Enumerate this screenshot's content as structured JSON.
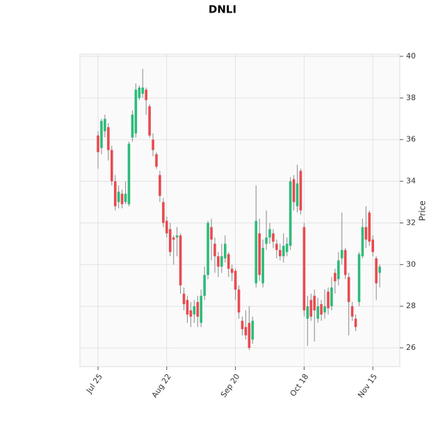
{
  "chart_data": {
    "type": "candlestick",
    "title": "DNLI",
    "ylabel": "Price",
    "categories": [
      "Jul 25",
      null,
      null,
      null,
      null,
      null,
      null,
      null,
      null,
      null,
      null,
      null,
      null,
      null,
      null,
      null,
      null,
      null,
      null,
      null,
      "Aug 22",
      null,
      null,
      null,
      null,
      null,
      null,
      null,
      null,
      null,
      null,
      null,
      null,
      null,
      null,
      null,
      null,
      null,
      null,
      null,
      "Sep 20",
      null,
      null,
      null,
      null,
      null,
      null,
      null,
      null,
      null,
      null,
      null,
      null,
      null,
      null,
      null,
      null,
      null,
      null,
      null,
      "Oct 18",
      null,
      null,
      null,
      null,
      null,
      null,
      null,
      null,
      null,
      null,
      null,
      null,
      null,
      null,
      null,
      null,
      null,
      null,
      null,
      "Nov 15",
      null,
      null
    ],
    "open": [
      36.2,
      35.6,
      36.4,
      36.6,
      35.5,
      34.0,
      33.0,
      33.4,
      33.0,
      32.9,
      36.1,
      36.3,
      38.0,
      38.2,
      38.4,
      37.6,
      36.0,
      35.3,
      34.3,
      33.0,
      32.1,
      31.7,
      31.3,
      31.3,
      31.4,
      28.6,
      28.3,
      27.8,
      27.6,
      28.2,
      27.2,
      28.5,
      29.5,
      31.8,
      31.0,
      30.4,
      29.9,
      30.3,
      30.5,
      29.8,
      29.7,
      28.8,
      27.3,
      27.0,
      27.2,
      26.4,
      29.1,
      31.5,
      29.1,
      31.0,
      31.3,
      31.5,
      31.0,
      30.7,
      30.4,
      30.6,
      30.9,
      34.1,
      32.8,
      34.5,
      31.8,
      27.4,
      28.3,
      28.5,
      27.4,
      28.1,
      27.7,
      28.7,
      28.0,
      29.6,
      29.3,
      30.3,
      30.7,
      29.4,
      28.0,
      27.4,
      28.2,
      30.4,
      31.8,
      32.5,
      31.2,
      30.3,
      29.6
    ],
    "high": [
      36.4,
      37.0,
      37.2,
      36.8,
      35.7,
      34.3,
      33.8,
      33.6,
      34.0,
      35.9,
      37.4,
      38.7,
      38.6,
      39.4,
      38.5,
      37.7,
      36.3,
      35.4,
      34.5,
      33.2,
      32.3,
      32.0,
      31.4,
      31.8,
      31.5,
      28.9,
      28.5,
      28.2,
      28.3,
      28.5,
      28.8,
      29.9,
      32.1,
      32.2,
      31.3,
      30.6,
      31.0,
      31.4,
      30.6,
      30.0,
      29.8,
      29.0,
      27.5,
      27.8,
      28.0,
      27.5,
      33.8,
      32.2,
      31.2,
      32.6,
      32.0,
      31.7,
      31.2,
      31.0,
      31.5,
      31.3,
      34.2,
      34.3,
      34.8,
      34.6,
      32.0,
      28.5,
      28.6,
      28.8,
      28.4,
      28.3,
      28.8,
      28.9,
      29.4,
      29.8,
      30.6,
      32.5,
      30.8,
      29.6,
      28.2,
      27.6,
      30.6,
      32.2,
      32.8,
      32.6,
      31.4,
      30.4,
      30.0
    ],
    "low": [
      34.6,
      35.3,
      36.1,
      35.0,
      33.8,
      32.6,
      32.7,
      32.7,
      32.9,
      32.8,
      35.9,
      36.1,
      37.9,
      38.0,
      37.2,
      36.1,
      35.2,
      34.6,
      33.0,
      31.8,
      31.3,
      30.4,
      30.0,
      30.4,
      28.6,
      27.8,
      27.2,
      27.0,
      27.2,
      27.0,
      27.0,
      28.3,
      29.3,
      30.2,
      29.6,
      29.4,
      29.6,
      30.1,
      29.4,
      29.2,
      28.3,
      27.4,
      26.6,
      26.4,
      25.9,
      26.2,
      28.9,
      29.2,
      28.9,
      30.7,
      31.0,
      30.8,
      30.3,
      30.2,
      30.1,
      30.4,
      30.7,
      32.6,
      32.5,
      32.4,
      27.5,
      26.1,
      27.3,
      26.3,
      27.2,
      27.3,
      27.4,
      27.6,
      27.8,
      28.6,
      29.0,
      30.0,
      29.3,
      26.6,
      27.3,
      26.8,
      28.0,
      30.3,
      30.8,
      30.9,
      30.4,
      28.3,
      28.9
    ],
    "close": [
      35.4,
      36.9,
      37.0,
      35.5,
      34.0,
      32.8,
      33.5,
      32.9,
      33.4,
      35.8,
      37.2,
      38.4,
      38.5,
      38.5,
      37.9,
      36.2,
      35.5,
      34.7,
      33.3,
      32.0,
      31.5,
      30.6,
      31.2,
      31.4,
      29.0,
      28.1,
      27.6,
      27.5,
      28.0,
      27.5,
      28.5,
      29.5,
      32.0,
      31.2,
      30.4,
      29.9,
      30.4,
      31.0,
      29.8,
      29.6,
      28.8,
      27.7,
      26.9,
      26.6,
      26.0,
      27.3,
      32.1,
      29.5,
      30.8,
      31.3,
      31.7,
      31.1,
      30.7,
      30.4,
      30.9,
      31.0,
      34.0,
      33.0,
      33.9,
      32.6,
      27.8,
      28.0,
      27.5,
      27.8,
      28.0,
      27.6,
      28.0,
      27.9,
      28.9,
      29.2,
      30.2,
      30.7,
      29.5,
      28.2,
      27.5,
      27.0,
      30.5,
      31.8,
      31.2,
      31.1,
      30.6,
      29.1,
      29.9
    ],
    "ylim": [
      25.1,
      40.1
    ],
    "yticks": [
      26,
      28,
      30,
      32,
      34,
      36,
      38,
      40
    ],
    "up_color": "#2dbb7a",
    "down_color": "#e84a4f",
    "grid": true
  }
}
